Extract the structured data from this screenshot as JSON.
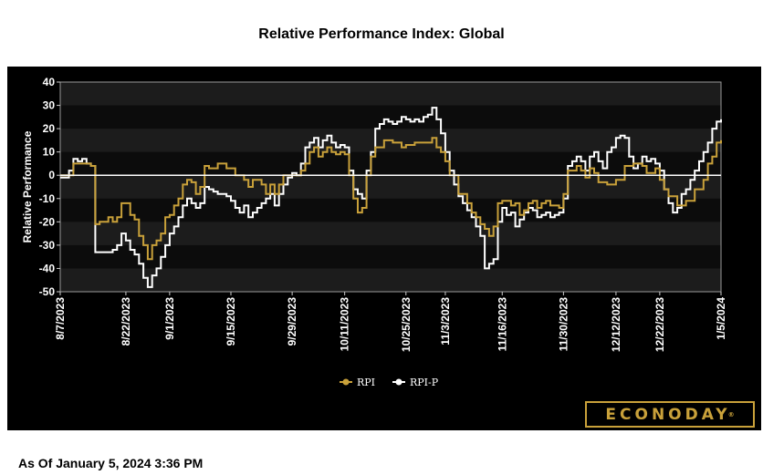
{
  "title": "Relative Performance Index: Global",
  "footer": "As Of January 5, 2024 3:36 PM",
  "brand": {
    "name": "ECONODAY",
    "mark": "®"
  },
  "colors": {
    "rpi": "#c9a13a",
    "rpi_p": "#ffffff",
    "panel": "#000000",
    "band": "#1c1c1c",
    "zero_line": "#ffffff"
  },
  "chart_data": {
    "type": "line",
    "title": "Relative Performance Index: Global",
    "xlabel": "",
    "ylabel": "Relative Performance",
    "ylim": [
      -50,
      40
    ],
    "yticks": [
      40,
      30,
      20,
      10,
      0,
      -10,
      -20,
      -30,
      -40,
      -50
    ],
    "x_tick_labels": [
      "8/7/2023",
      "8/22/2023",
      "9/1/2023",
      "9/15/2023",
      "9/29/2023",
      "10/11/2023",
      "10/25/2023",
      "11/3/2023",
      "11/16/2023",
      "11/30/2023",
      "12/12/2023",
      "12/22/2023",
      "1/5/2024"
    ],
    "x_tick_dates": [
      "2023-08-07",
      "2023-08-22",
      "2023-09-01",
      "2023-09-15",
      "2023-09-29",
      "2023-10-11",
      "2023-10-25",
      "2023-11-03",
      "2023-11-16",
      "2023-11-30",
      "2023-12-12",
      "2023-12-22",
      "2024-01-05"
    ],
    "x_range": [
      "2023-08-07",
      "2024-01-05"
    ],
    "legend_position": "bottom",
    "series": [
      {
        "name": "RPI",
        "color": "#c9a13a",
        "points": [
          [
            "2023-08-07",
            0
          ],
          [
            "2023-08-09",
            0
          ],
          [
            "2023-08-10",
            5
          ],
          [
            "2023-08-13",
            5
          ],
          [
            "2023-08-14",
            4
          ],
          [
            "2023-08-15",
            -21
          ],
          [
            "2023-08-16",
            -20
          ],
          [
            "2023-08-17",
            -20
          ],
          [
            "2023-08-18",
            -18
          ],
          [
            "2023-08-19",
            -20
          ],
          [
            "2023-08-20",
            -18
          ],
          [
            "2023-08-21",
            -12
          ],
          [
            "2023-08-23",
            -17
          ],
          [
            "2023-08-24",
            -19
          ],
          [
            "2023-08-25",
            -26
          ],
          [
            "2023-08-26",
            -30
          ],
          [
            "2023-08-27",
            -36
          ],
          [
            "2023-08-28",
            -30
          ],
          [
            "2023-08-29",
            -28
          ],
          [
            "2023-08-30",
            -25
          ],
          [
            "2023-08-31",
            -18
          ],
          [
            "2023-09-01",
            -17
          ],
          [
            "2023-09-02",
            -13
          ],
          [
            "2023-09-03",
            -10
          ],
          [
            "2023-09-04",
            -4
          ],
          [
            "2023-09-05",
            -2
          ],
          [
            "2023-09-06",
            -3
          ],
          [
            "2023-09-07",
            -8
          ],
          [
            "2023-09-08",
            -5
          ],
          [
            "2023-09-09",
            4
          ],
          [
            "2023-09-10",
            3
          ],
          [
            "2023-09-12",
            5
          ],
          [
            "2023-09-14",
            3
          ],
          [
            "2023-09-16",
            0
          ],
          [
            "2023-09-18",
            -2
          ],
          [
            "2023-09-19",
            -5
          ],
          [
            "2023-09-20",
            -2
          ],
          [
            "2023-09-22",
            -4
          ],
          [
            "2023-09-23",
            -8
          ],
          [
            "2023-09-24",
            -4
          ],
          [
            "2023-09-25",
            -8
          ],
          [
            "2023-09-26",
            -4
          ],
          [
            "2023-09-27",
            0
          ],
          [
            "2023-09-28",
            0
          ],
          [
            "2023-09-29",
            0
          ],
          [
            "2023-10-01",
            2
          ],
          [
            "2023-10-02",
            5
          ],
          [
            "2023-10-03",
            10
          ],
          [
            "2023-10-04",
            12
          ],
          [
            "2023-10-05",
            8
          ],
          [
            "2023-10-06",
            10
          ],
          [
            "2023-10-07",
            12
          ],
          [
            "2023-10-08",
            10
          ],
          [
            "2023-10-09",
            9
          ],
          [
            "2023-10-10",
            10
          ],
          [
            "2023-10-11",
            9
          ],
          [
            "2023-10-12",
            0
          ],
          [
            "2023-10-13",
            -10
          ],
          [
            "2023-10-14",
            -16
          ],
          [
            "2023-10-15",
            -14
          ],
          [
            "2023-10-16",
            0
          ],
          [
            "2023-10-17",
            8
          ],
          [
            "2023-10-18",
            12
          ],
          [
            "2023-10-20",
            15
          ],
          [
            "2023-10-22",
            14
          ],
          [
            "2023-10-24",
            12
          ],
          [
            "2023-10-25",
            13
          ],
          [
            "2023-10-27",
            14
          ],
          [
            "2023-10-29",
            14
          ],
          [
            "2023-10-31",
            16
          ],
          [
            "2023-11-01",
            12
          ],
          [
            "2023-11-02",
            10
          ],
          [
            "2023-11-03",
            6
          ],
          [
            "2023-11-04",
            0
          ],
          [
            "2023-11-06",
            -8
          ],
          [
            "2023-11-08",
            -12
          ],
          [
            "2023-11-09",
            -16
          ],
          [
            "2023-11-10",
            -18
          ],
          [
            "2023-11-11",
            -21
          ],
          [
            "2023-11-12",
            -23
          ],
          [
            "2023-11-13",
            -26
          ],
          [
            "2023-11-14",
            -22
          ],
          [
            "2023-11-15",
            -12
          ],
          [
            "2023-11-16",
            -11
          ],
          [
            "2023-11-18",
            -13
          ],
          [
            "2023-11-19",
            -12
          ],
          [
            "2023-11-20",
            -17
          ],
          [
            "2023-11-21",
            -15
          ],
          [
            "2023-11-22",
            -12
          ],
          [
            "2023-11-23",
            -11
          ],
          [
            "2023-11-24",
            -14
          ],
          [
            "2023-11-25",
            -12
          ],
          [
            "2023-11-26",
            -11
          ],
          [
            "2023-11-27",
            -13
          ],
          [
            "2023-11-28",
            -13
          ],
          [
            "2023-11-29",
            -14
          ],
          [
            "2023-11-30",
            -8
          ],
          [
            "2023-12-01",
            2
          ],
          [
            "2023-12-03",
            4
          ],
          [
            "2023-12-04",
            2
          ],
          [
            "2023-12-05",
            -1
          ],
          [
            "2023-12-06",
            3
          ],
          [
            "2023-12-07",
            1
          ],
          [
            "2023-12-08",
            -3
          ],
          [
            "2023-12-10",
            -4
          ],
          [
            "2023-12-12",
            -2
          ],
          [
            "2023-12-14",
            4
          ],
          [
            "2023-12-16",
            5
          ],
          [
            "2023-12-18",
            4
          ],
          [
            "2023-12-19",
            1
          ],
          [
            "2023-12-21",
            3
          ],
          [
            "2023-12-22",
            -2
          ],
          [
            "2023-12-23",
            -6
          ],
          [
            "2023-12-24",
            -9
          ],
          [
            "2023-12-26",
            -13
          ],
          [
            "2023-12-28",
            -11
          ],
          [
            "2023-12-30",
            -6
          ],
          [
            "2024-01-01",
            -2
          ],
          [
            "2024-01-02",
            5
          ],
          [
            "2024-01-03",
            8
          ],
          [
            "2024-01-04",
            14
          ],
          [
            "2024-01-05",
            15
          ]
        ]
      },
      {
        "name": "RPI-P",
        "color": "#ffffff",
        "points": [
          [
            "2023-08-07",
            -1
          ],
          [
            "2023-08-08",
            -1
          ],
          [
            "2023-08-09",
            2
          ],
          [
            "2023-08-10",
            7
          ],
          [
            "2023-08-11",
            6
          ],
          [
            "2023-08-12",
            7
          ],
          [
            "2023-08-13",
            5
          ],
          [
            "2023-08-14",
            4
          ],
          [
            "2023-08-15",
            -33
          ],
          [
            "2023-08-16",
            -33
          ],
          [
            "2023-08-17",
            -33
          ],
          [
            "2023-08-18",
            -33
          ],
          [
            "2023-08-19",
            -32
          ],
          [
            "2023-08-20",
            -30
          ],
          [
            "2023-08-21",
            -25
          ],
          [
            "2023-08-22",
            -28
          ],
          [
            "2023-08-23",
            -32
          ],
          [
            "2023-08-24",
            -34
          ],
          [
            "2023-08-25",
            -38
          ],
          [
            "2023-08-26",
            -44
          ],
          [
            "2023-08-27",
            -48
          ],
          [
            "2023-08-28",
            -43
          ],
          [
            "2023-08-29",
            -40
          ],
          [
            "2023-08-30",
            -35
          ],
          [
            "2023-08-31",
            -30
          ],
          [
            "2023-09-01",
            -25
          ],
          [
            "2023-09-02",
            -22
          ],
          [
            "2023-09-03",
            -18
          ],
          [
            "2023-09-04",
            -13
          ],
          [
            "2023-09-05",
            -10
          ],
          [
            "2023-09-06",
            -12
          ],
          [
            "2023-09-07",
            -14
          ],
          [
            "2023-09-08",
            -12
          ],
          [
            "2023-09-09",
            -5
          ],
          [
            "2023-09-10",
            -6
          ],
          [
            "2023-09-11",
            -7
          ],
          [
            "2023-09-12",
            -8
          ],
          [
            "2023-09-13",
            -8
          ],
          [
            "2023-09-14",
            -9
          ],
          [
            "2023-09-15",
            -11
          ],
          [
            "2023-09-16",
            -14
          ],
          [
            "2023-09-17",
            -16
          ],
          [
            "2023-09-18",
            -13
          ],
          [
            "2023-09-19",
            -18
          ],
          [
            "2023-09-20",
            -16
          ],
          [
            "2023-09-21",
            -14
          ],
          [
            "2023-09-22",
            -12
          ],
          [
            "2023-09-23",
            -10
          ],
          [
            "2023-09-24",
            -8
          ],
          [
            "2023-09-25",
            -13
          ],
          [
            "2023-09-26",
            -8
          ],
          [
            "2023-09-27",
            -4
          ],
          [
            "2023-09-28",
            -1
          ],
          [
            "2023-09-29",
            1
          ],
          [
            "2023-09-30",
            0
          ],
          [
            "2023-10-01",
            5
          ],
          [
            "2023-10-02",
            12
          ],
          [
            "2023-10-03",
            14
          ],
          [
            "2023-10-04",
            16
          ],
          [
            "2023-10-05",
            12
          ],
          [
            "2023-10-06",
            15
          ],
          [
            "2023-10-07",
            17
          ],
          [
            "2023-10-08",
            14
          ],
          [
            "2023-10-09",
            12
          ],
          [
            "2023-10-10",
            13
          ],
          [
            "2023-10-11",
            12
          ],
          [
            "2023-10-12",
            2
          ],
          [
            "2023-10-13",
            -6
          ],
          [
            "2023-10-14",
            -8
          ],
          [
            "2023-10-15",
            -10
          ],
          [
            "2023-10-16",
            2
          ],
          [
            "2023-10-17",
            10
          ],
          [
            "2023-10-18",
            20
          ],
          [
            "2023-10-19",
            22
          ],
          [
            "2023-10-20",
            24
          ],
          [
            "2023-10-21",
            23
          ],
          [
            "2023-10-22",
            22
          ],
          [
            "2023-10-23",
            23
          ],
          [
            "2023-10-24",
            25
          ],
          [
            "2023-10-25",
            24
          ],
          [
            "2023-10-26",
            23
          ],
          [
            "2023-10-27",
            24
          ],
          [
            "2023-10-28",
            23
          ],
          [
            "2023-10-29",
            25
          ],
          [
            "2023-10-30",
            26
          ],
          [
            "2023-10-31",
            29
          ],
          [
            "2023-11-01",
            24
          ],
          [
            "2023-11-02",
            18
          ],
          [
            "2023-11-03",
            10
          ],
          [
            "2023-11-04",
            2
          ],
          [
            "2023-11-05",
            -4
          ],
          [
            "2023-11-06",
            -9
          ],
          [
            "2023-11-07",
            -12
          ],
          [
            "2023-11-08",
            -15
          ],
          [
            "2023-11-09",
            -18
          ],
          [
            "2023-11-10",
            -22
          ],
          [
            "2023-11-11",
            -26
          ],
          [
            "2023-11-12",
            -40
          ],
          [
            "2023-11-13",
            -38
          ],
          [
            "2023-11-14",
            -36
          ],
          [
            "2023-11-15",
            -20
          ],
          [
            "2023-11-16",
            -14
          ],
          [
            "2023-11-17",
            -17
          ],
          [
            "2023-11-18",
            -16
          ],
          [
            "2023-11-19",
            -22
          ],
          [
            "2023-11-20",
            -19
          ],
          [
            "2023-11-21",
            -16
          ],
          [
            "2023-11-22",
            -14
          ],
          [
            "2023-11-23",
            -15
          ],
          [
            "2023-11-24",
            -18
          ],
          [
            "2023-11-25",
            -17
          ],
          [
            "2023-11-26",
            -16
          ],
          [
            "2023-11-27",
            -18
          ],
          [
            "2023-11-28",
            -17
          ],
          [
            "2023-11-29",
            -16
          ],
          [
            "2023-11-30",
            -10
          ],
          [
            "2023-12-01",
            4
          ],
          [
            "2023-12-02",
            6
          ],
          [
            "2023-12-03",
            8
          ],
          [
            "2023-12-04",
            6
          ],
          [
            "2023-12-05",
            2
          ],
          [
            "2023-12-06",
            8
          ],
          [
            "2023-12-07",
            10
          ],
          [
            "2023-12-08",
            6
          ],
          [
            "2023-12-09",
            3
          ],
          [
            "2023-12-10",
            10
          ],
          [
            "2023-12-11",
            12
          ],
          [
            "2023-12-12",
            16
          ],
          [
            "2023-12-13",
            17
          ],
          [
            "2023-12-14",
            16
          ],
          [
            "2023-12-15",
            8
          ],
          [
            "2023-12-16",
            3
          ],
          [
            "2023-12-17",
            5
          ],
          [
            "2023-12-18",
            8
          ],
          [
            "2023-12-19",
            6
          ],
          [
            "2023-12-20",
            7
          ],
          [
            "2023-12-21",
            5
          ],
          [
            "2023-12-22",
            2
          ],
          [
            "2023-12-23",
            -6
          ],
          [
            "2023-12-24",
            -12
          ],
          [
            "2023-12-25",
            -16
          ],
          [
            "2023-12-26",
            -14
          ],
          [
            "2023-12-27",
            -8
          ],
          [
            "2023-12-28",
            -6
          ],
          [
            "2023-12-29",
            -2
          ],
          [
            "2023-12-30",
            2
          ],
          [
            "2023-12-31",
            6
          ],
          [
            "2024-01-01",
            10
          ],
          [
            "2024-01-02",
            14
          ],
          [
            "2024-01-03",
            20
          ],
          [
            "2024-01-04",
            23
          ],
          [
            "2024-01-05",
            24
          ]
        ]
      }
    ]
  }
}
